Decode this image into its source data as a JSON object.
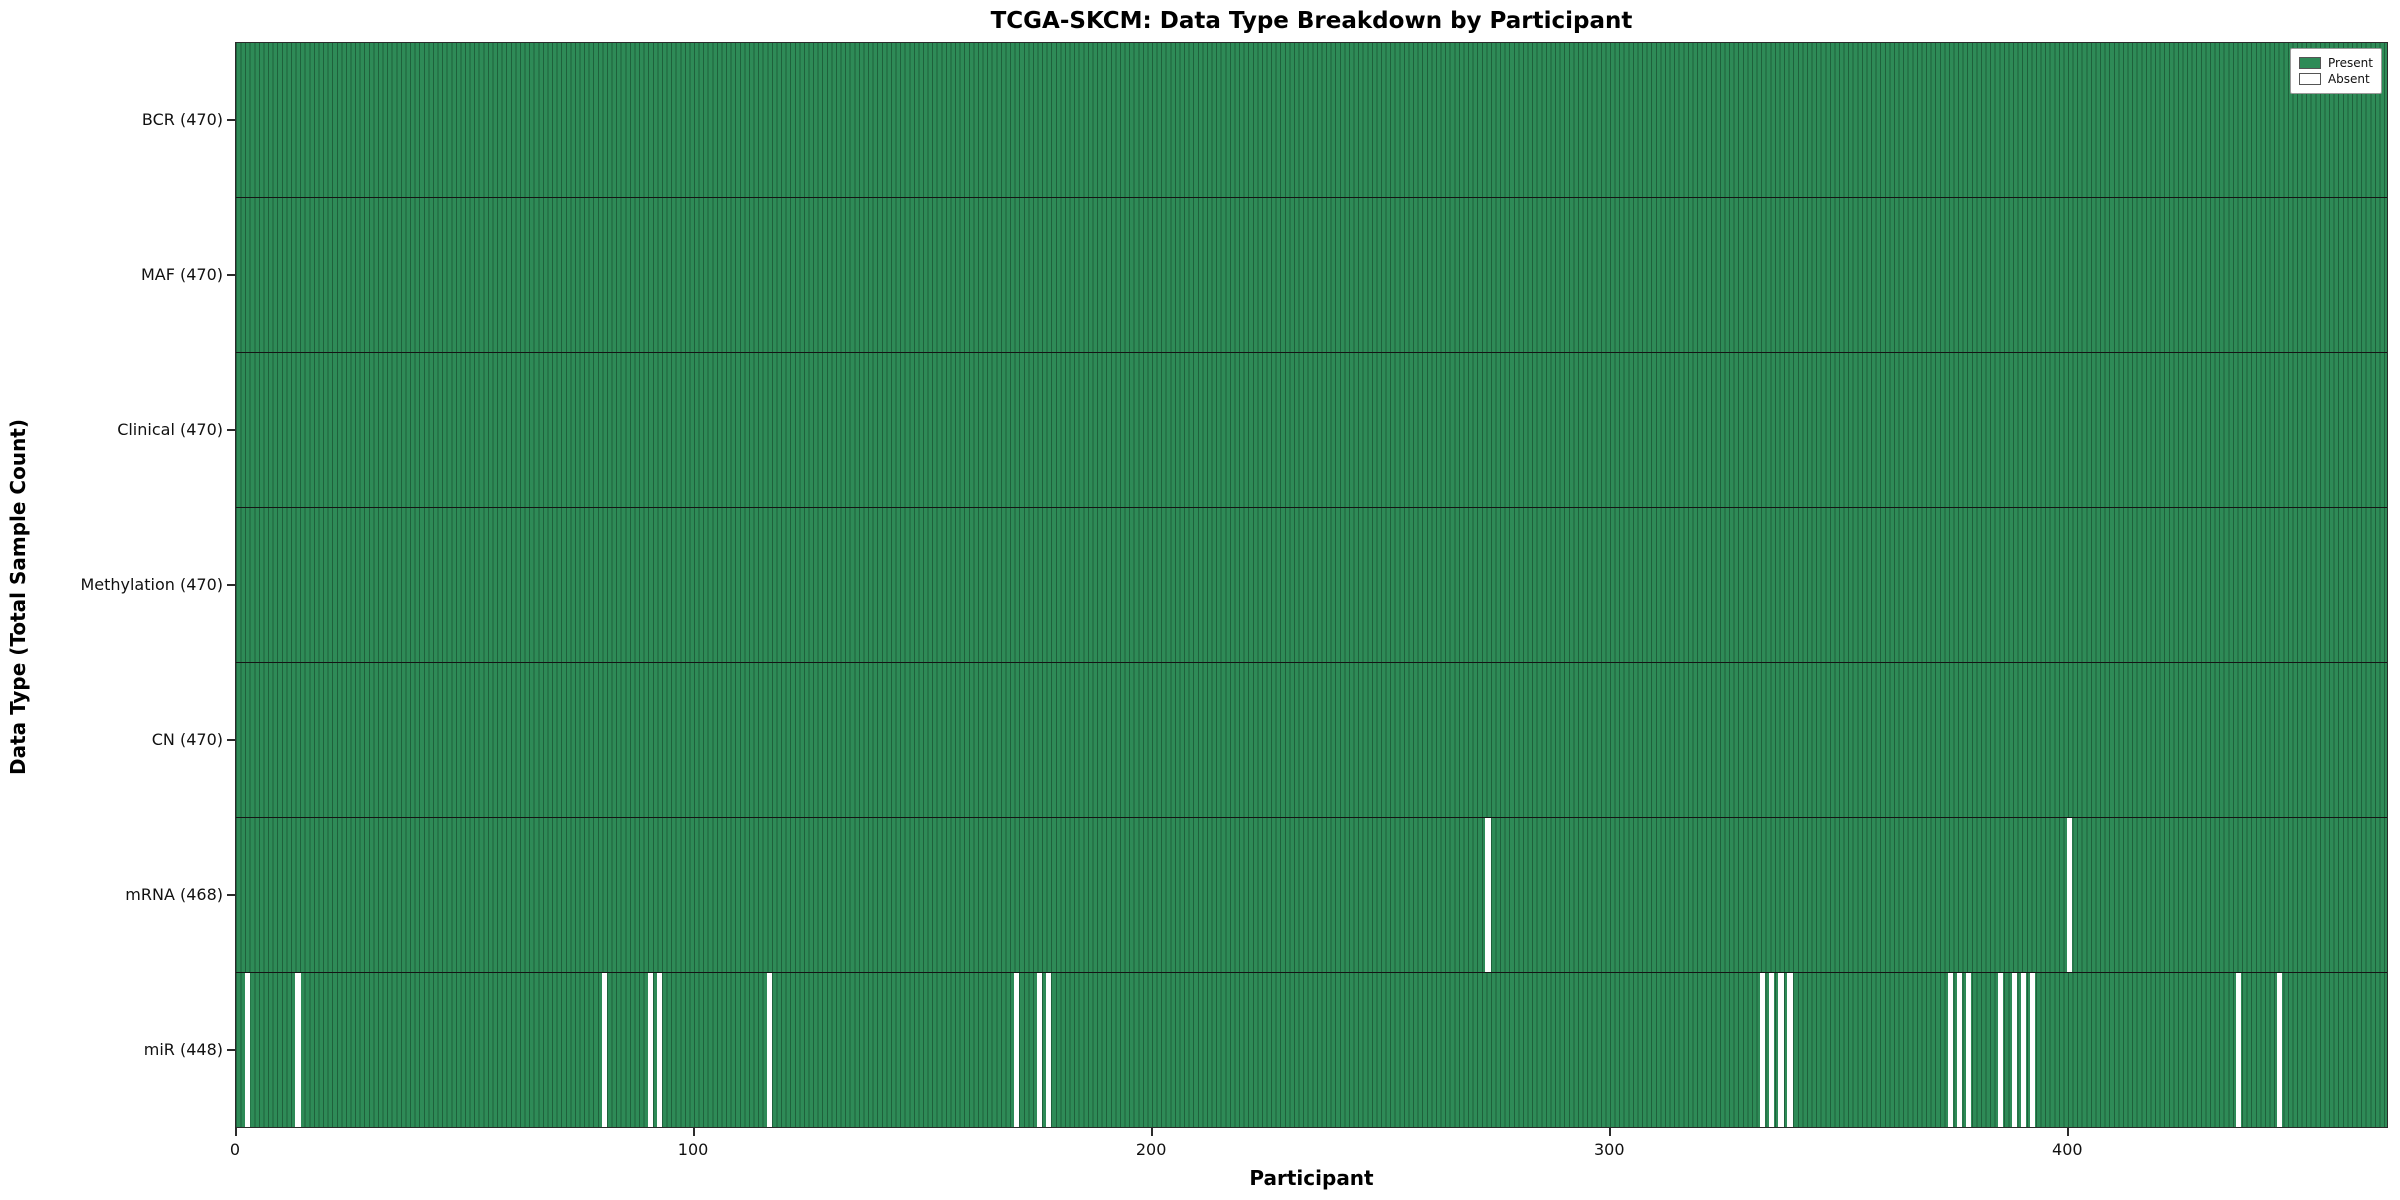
{
  "title": "TCGA-SKCM: Data Type Breakdown by Participant",
  "xlabel": "Participant",
  "ylabel": "Data Type (Total Sample Count)",
  "legend": {
    "present_label": "Present",
    "absent_label": "Absent"
  },
  "chart_data": {
    "type": "heatmap",
    "title": "TCGA-SKCM: Data Type Breakdown by Participant",
    "xlabel": "Participant",
    "ylabel": "Data Type (Total Sample Count)",
    "x_range": [
      0,
      470
    ],
    "n_participants": 470,
    "x_ticks": [
      0,
      100,
      200,
      300,
      400
    ],
    "present_color": "#2e8b57",
    "absent_color": "#ffffff",
    "legend_entries": [
      "Present",
      "Absent"
    ],
    "rows": [
      {
        "label": "BCR (470)",
        "data_type": "BCR",
        "present_count": 470,
        "absent_participants": []
      },
      {
        "label": "MAF (470)",
        "data_type": "MAF",
        "present_count": 470,
        "absent_participants": []
      },
      {
        "label": "Clinical (470)",
        "data_type": "Clinical",
        "present_count": 470,
        "absent_participants": []
      },
      {
        "label": "Methylation (470)",
        "data_type": "Methylation",
        "present_count": 470,
        "absent_participants": []
      },
      {
        "label": "CN (470)",
        "data_type": "CN",
        "present_count": 470,
        "absent_participants": []
      },
      {
        "label": "mRNA (468)",
        "data_type": "mRNA",
        "present_count": 468,
        "absent_participants": [
          273,
          400
        ]
      },
      {
        "label": "miR (448)",
        "data_type": "miR",
        "present_count": 448,
        "absent_participants": [
          2,
          13,
          80,
          90,
          92,
          116,
          170,
          175,
          177,
          333,
          335,
          337,
          339,
          374,
          376,
          378,
          385,
          388,
          390,
          392,
          437,
          446
        ]
      }
    ]
  }
}
